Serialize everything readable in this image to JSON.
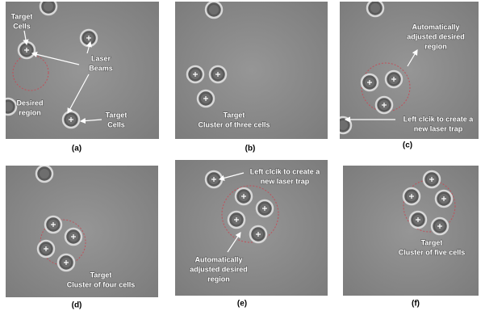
{
  "panels": [
    {
      "label": "(a)",
      "annotations": [
        [
          "Target",
          "Cells"
        ],
        [
          "Laser",
          "Beams"
        ],
        [
          "Desired",
          "region"
        ],
        [
          "Target",
          "Cells"
        ]
      ]
    },
    {
      "label": "(b)",
      "annotations": [
        [
          "Target",
          "Cluster of three cells"
        ]
      ]
    },
    {
      "label": "(c)",
      "annotations": [
        [
          "Automatically",
          "adjusted desired",
          "region"
        ],
        [
          "Left clcik to create a",
          "new laser trap"
        ]
      ]
    },
    {
      "label": "(d)",
      "annotations": [
        [
          "Target",
          "Cluster of four cells"
        ]
      ]
    },
    {
      "label": "(e)",
      "annotations": [
        [
          "Left clcik to create a",
          "new laser trap"
        ],
        [
          "Automatically",
          "adjusted desired",
          "region"
        ]
      ]
    },
    {
      "label": "(f)",
      "annotations": [
        [
          "Target",
          "Cluster of five cells"
        ]
      ]
    }
  ]
}
